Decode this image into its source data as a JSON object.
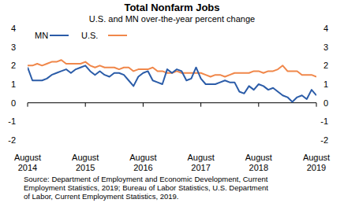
{
  "chart_data": {
    "type": "line",
    "title": "Total Nonfarm Jobs",
    "subtitle": "U.S. and MN over-the-year percent change",
    "annotations": [
      "Source: Department of Employment and Economic Development, Current",
      "Employment Statistics, 2019; Bureau of Labor Statistics, U.S. Department",
      "of Labor, Current Employment Statistics, 2019."
    ],
    "categories": [
      "August 2014",
      null,
      null,
      null,
      null,
      null,
      null,
      null,
      null,
      null,
      null,
      null,
      "August 2015",
      null,
      null,
      null,
      null,
      null,
      null,
      null,
      null,
      null,
      null,
      null,
      "August 2016",
      null,
      null,
      null,
      null,
      null,
      null,
      null,
      null,
      null,
      null,
      null,
      "August 2017",
      null,
      null,
      null,
      null,
      null,
      null,
      null,
      null,
      null,
      null,
      null,
      "August 2018",
      null,
      null,
      null,
      null,
      null,
      null,
      null,
      null,
      null,
      null,
      null,
      "August 2019"
    ],
    "series": [
      {
        "name": "MN",
        "color": "#2b5ca8",
        "values": [
          1.9,
          1.2,
          1.2,
          1.2,
          1.3,
          1.5,
          1.6,
          1.7,
          1.8,
          1.6,
          1.8,
          1.9,
          2.0,
          1.7,
          1.5,
          1.7,
          1.5,
          1.4,
          1.6,
          1.6,
          1.5,
          1.2,
          0.9,
          1.4,
          1.6,
          1.7,
          1.2,
          1.1,
          1.0,
          1.8,
          1.6,
          1.8,
          1.7,
          1.2,
          1.3,
          1.9,
          1.3,
          1.0,
          1.0,
          1.0,
          1.1,
          1.2,
          1.1,
          1.1,
          0.6,
          0.5,
          0.9,
          0.7,
          1.0,
          0.9,
          0.7,
          0.8,
          0.6,
          0.4,
          0.3,
          0.05,
          0.3,
          0.4,
          0.2,
          0.7,
          0.4
        ]
      },
      {
        "name": "U.S.",
        "color": "#f0874a",
        "values": [
          2.0,
          2.0,
          2.1,
          2.0,
          2.1,
          2.2,
          2.2,
          2.3,
          2.1,
          2.1,
          2.1,
          2.1,
          2.2,
          2.0,
          1.9,
          2.0,
          1.9,
          1.9,
          1.9,
          1.8,
          1.9,
          1.9,
          1.7,
          1.8,
          1.8,
          1.8,
          1.9,
          1.7,
          1.7,
          1.6,
          1.6,
          1.7,
          1.6,
          1.6,
          1.6,
          1.6,
          1.6,
          1.5,
          1.4,
          1.5,
          1.5,
          1.4,
          1.5,
          1.6,
          1.6,
          1.6,
          1.6,
          1.7,
          1.7,
          1.6,
          1.7,
          1.7,
          1.8,
          2.0,
          1.7,
          1.7,
          1.7,
          1.5,
          1.5,
          1.5,
          1.4
        ]
      }
    ],
    "ylim": [
      -2,
      4
    ],
    "yticks": [
      -2,
      -1,
      0,
      1,
      2,
      3,
      4
    ],
    "grid": false,
    "legend": "top-left"
  }
}
